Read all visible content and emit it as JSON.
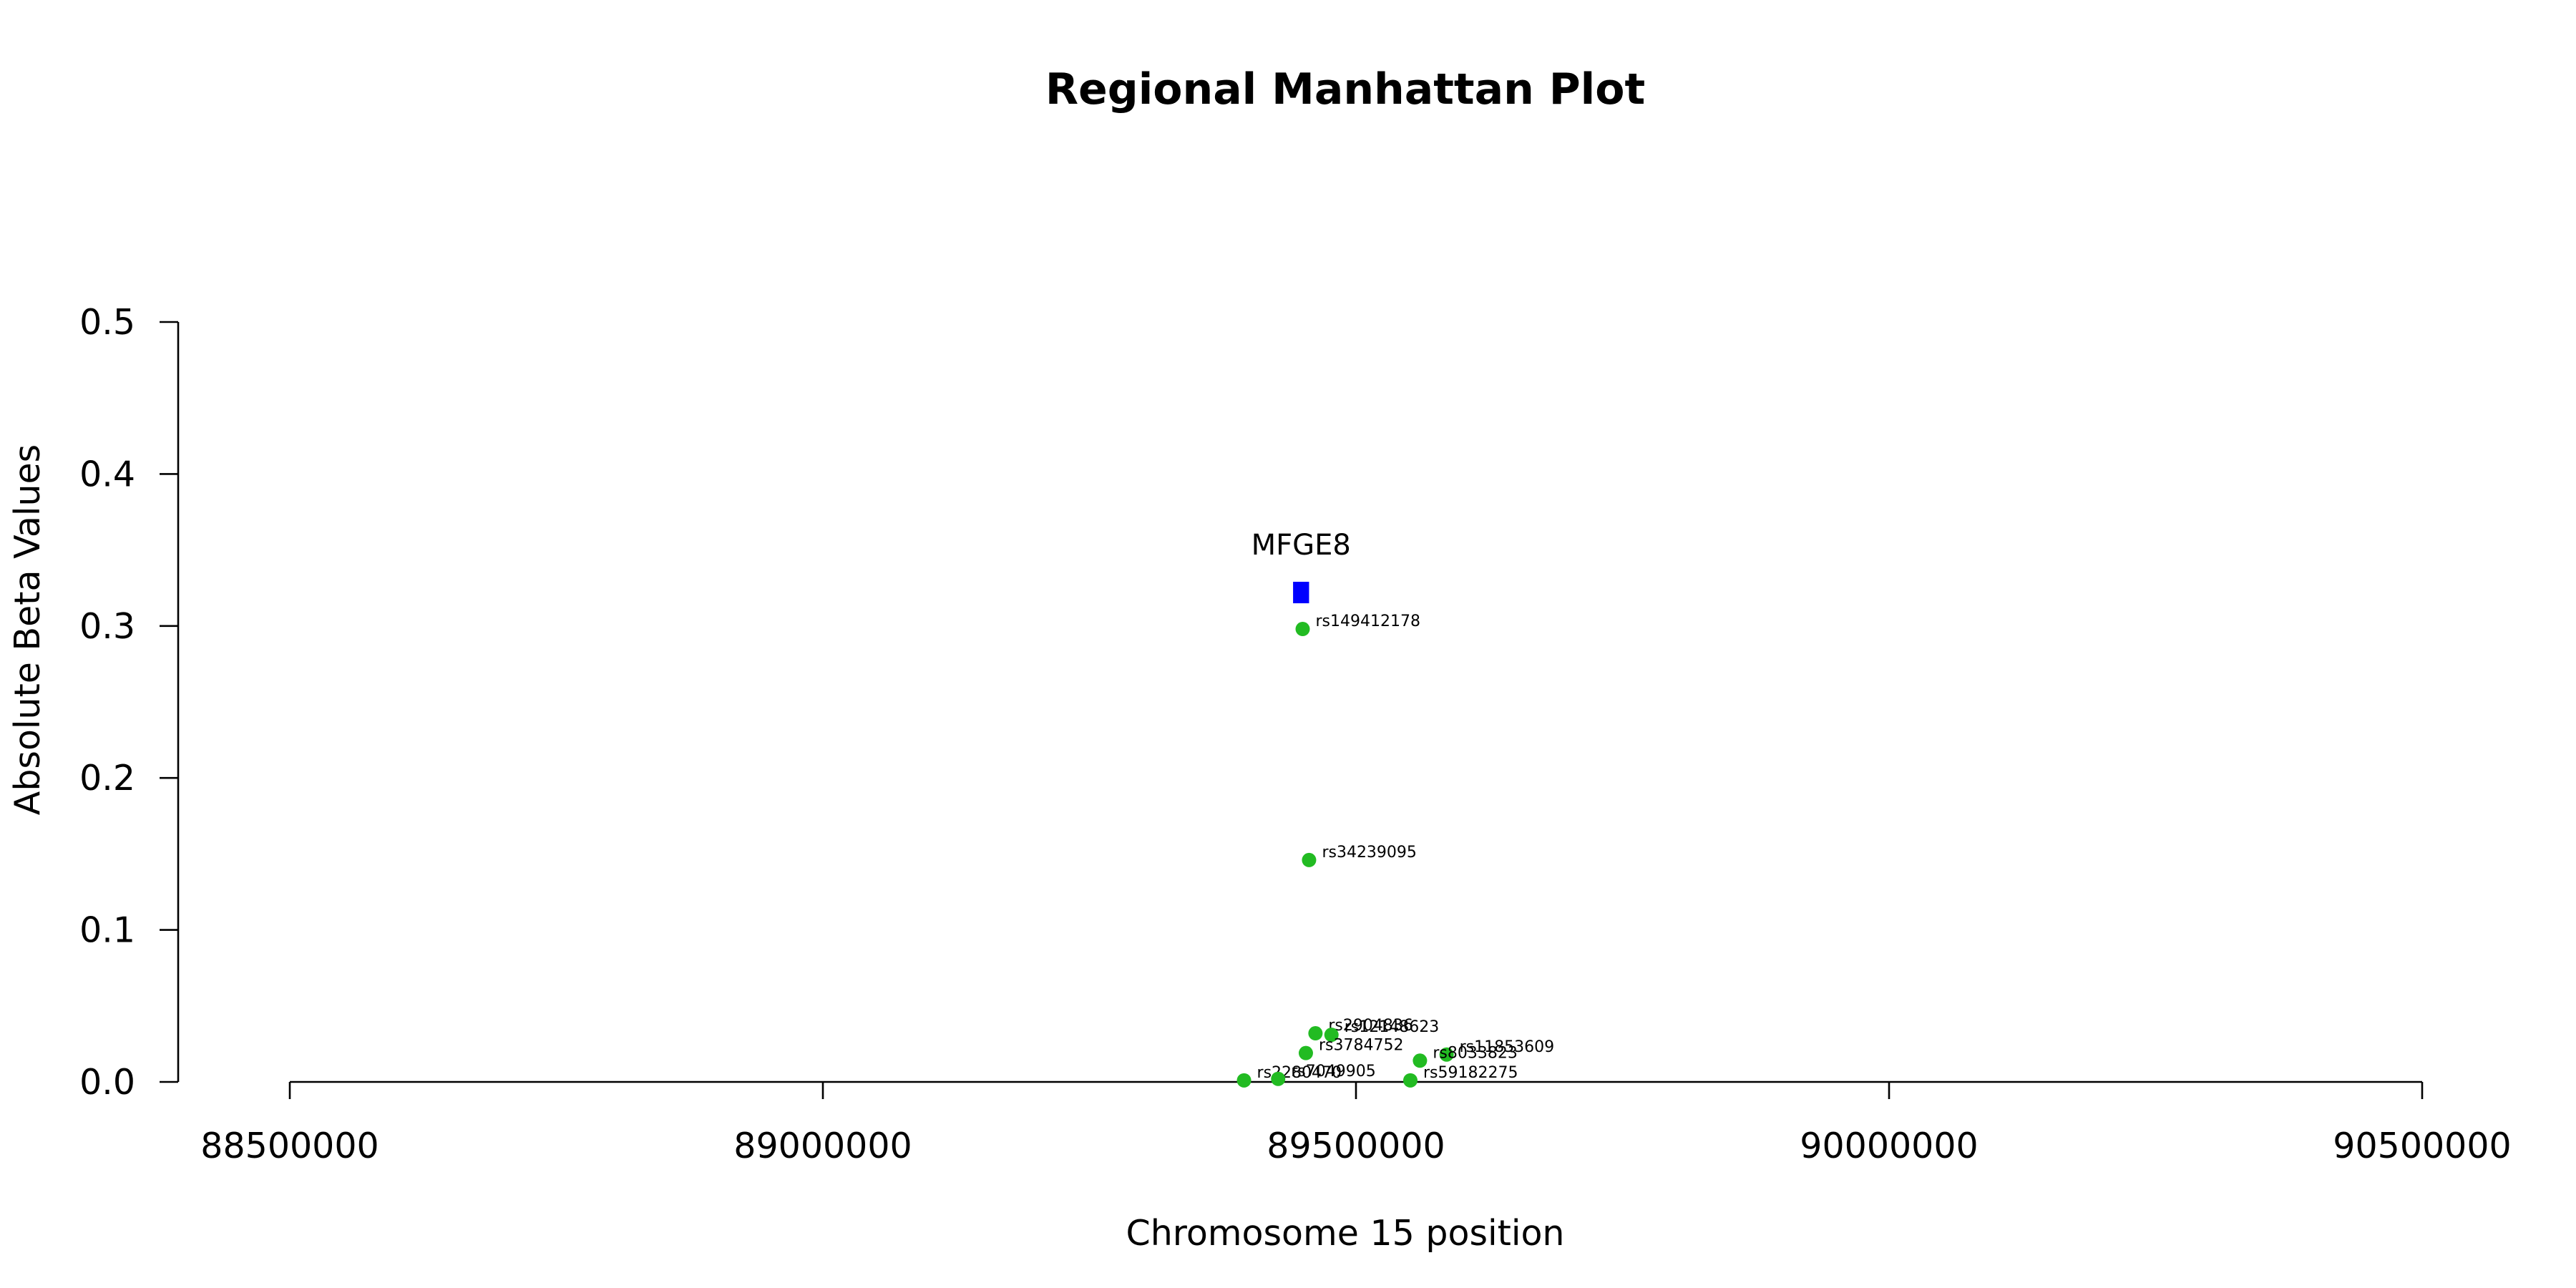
{
  "chart_data": {
    "type": "scatter",
    "title": "Regional Manhattan Plot",
    "xlabel": "Chromosome 15 position",
    "ylabel": "Absolute Beta Values",
    "xlim": [
      88500000,
      90500000
    ],
    "ylim": [
      0,
      0.5
    ],
    "x_ticks": [
      "88500000",
      "89000000",
      "89500000",
      "90000000",
      "90500000"
    ],
    "y_ticks": [
      "0.0",
      "0.1",
      "0.2",
      "0.3",
      "0.4",
      "0.5"
    ],
    "grid": false,
    "point_color": "#22bb22",
    "gene_color": "#0000ff",
    "genes": [
      {
        "name": "MFGE8",
        "start": 89441000,
        "end": 89456000,
        "y": 0.322
      }
    ],
    "points": [
      {
        "label": "rs149412178",
        "x": 89450000,
        "y": 0.298
      },
      {
        "label": "rs34239095",
        "x": 89456000,
        "y": 0.146
      },
      {
        "label": "rs2904836",
        "x": 89462000,
        "y": 0.032
      },
      {
        "label": "rs12148623",
        "x": 89477000,
        "y": 0.031
      },
      {
        "label": "rs3784752",
        "x": 89453000,
        "y": 0.019
      },
      {
        "label": "rs11853609",
        "x": 89585000,
        "y": 0.018
      },
      {
        "label": "rs8033823",
        "x": 89560000,
        "y": 0.014
      },
      {
        "label": "rs2280470",
        "x": 89395000,
        "y": 0.001
      },
      {
        "label": "rs7049905",
        "x": 89427000,
        "y": 0.002
      },
      {
        "label": "rs59182275",
        "x": 89551000,
        "y": 0.001
      }
    ]
  }
}
